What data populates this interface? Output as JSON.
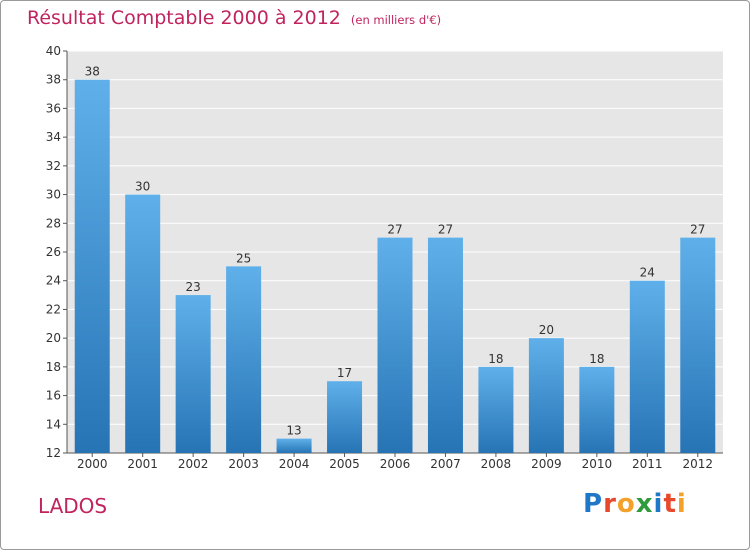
{
  "title": {
    "main": "Résultat Comptable 2000 à 2012",
    "unit": "(en milliers d'€)"
  },
  "commune": "LADOS",
  "logo": {
    "text": "Proxiti",
    "letters": [
      "P",
      "r",
      "o",
      "x",
      "i",
      "t",
      "i"
    ],
    "colors": [
      "#1f77c8",
      "#e8482c",
      "#f4a12b",
      "#2f9b3a",
      "#1f77c8",
      "#e8482c",
      "#f4a12b"
    ]
  },
  "colors": {
    "title": "#c0245e",
    "bar_top": "#5fb0ea",
    "bar_bottom": "#2774b5",
    "plot_bg": "#e6e6e6",
    "grid": "#ffffff",
    "axis": "#555555"
  },
  "chart_data": {
    "type": "bar",
    "title": "Résultat Comptable 2000 à 2012",
    "subtitle": "(en milliers d'€)",
    "xlabel": "",
    "ylabel": "",
    "categories": [
      "2000",
      "2001",
      "2002",
      "2003",
      "2004",
      "2005",
      "2006",
      "2007",
      "2008",
      "2009",
      "2010",
      "2011",
      "2012"
    ],
    "values": [
      38,
      30,
      23,
      25,
      13,
      17,
      27,
      27,
      18,
      20,
      18,
      24,
      27
    ],
    "ylim": [
      12,
      40
    ],
    "yticks": [
      12,
      14,
      16,
      18,
      20,
      22,
      24,
      26,
      28,
      30,
      32,
      34,
      36,
      38,
      40
    ],
    "grid": true,
    "data_labels": true
  }
}
